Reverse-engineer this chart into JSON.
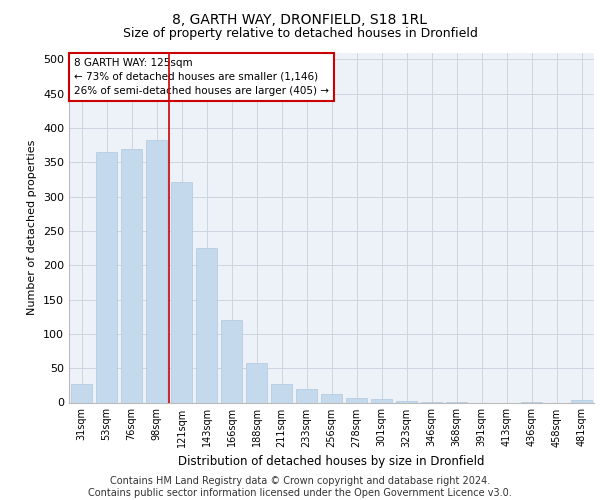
{
  "title": "8, GARTH WAY, DRONFIELD, S18 1RL",
  "subtitle": "Size of property relative to detached houses in Dronfield",
  "xlabel": "Distribution of detached houses by size in Dronfield",
  "ylabel": "Number of detached properties",
  "categories": [
    "31sqm",
    "53sqm",
    "76sqm",
    "98sqm",
    "121sqm",
    "143sqm",
    "166sqm",
    "188sqm",
    "211sqm",
    "233sqm",
    "256sqm",
    "278sqm",
    "301sqm",
    "323sqm",
    "346sqm",
    "368sqm",
    "391sqm",
    "413sqm",
    "436sqm",
    "458sqm",
    "481sqm"
  ],
  "values": [
    27,
    365,
    370,
    382,
    322,
    225,
    120,
    57,
    27,
    19,
    13,
    7,
    5,
    2,
    1,
    1,
    0,
    0,
    1,
    0,
    3
  ],
  "bar_color": "#c5d9ed",
  "bar_edgecolor": "#b0c8e0",
  "annotation_text": "8 GARTH WAY: 125sqm\n← 73% of detached houses are smaller (1,146)\n26% of semi-detached houses are larger (405) →",
  "annotation_box_color": "#ffffff",
  "annotation_box_edgecolor": "#cc0000",
  "vline_color": "#cc0000",
  "grid_color": "#ccd5e0",
  "background_color": "#edf2f8",
  "ylim": [
    0,
    510
  ],
  "yticks": [
    0,
    50,
    100,
    150,
    200,
    250,
    300,
    350,
    400,
    450,
    500
  ],
  "footer_line1": "Contains HM Land Registry data © Crown copyright and database right 2024.",
  "footer_line2": "Contains public sector information licensed under the Open Government Licence v3.0.",
  "title_fontsize": 10,
  "subtitle_fontsize": 9,
  "footer_fontsize": 7,
  "xlabel_fontsize": 8.5,
  "ylabel_fontsize": 8
}
